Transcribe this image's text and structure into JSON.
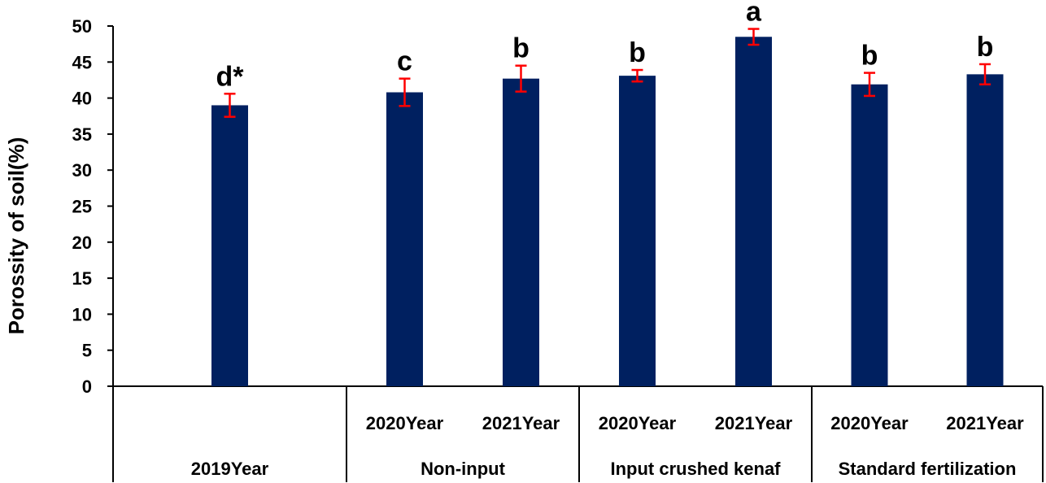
{
  "chart_data": {
    "type": "bar",
    "ylabel": "Porossity of soil(%)",
    "ylim": [
      0,
      50
    ],
    "yticks": [
      0,
      5,
      10,
      15,
      20,
      25,
      30,
      35,
      40,
      45,
      50
    ],
    "bar_color": "#002060",
    "error_color": "#ff0000",
    "groups": [
      {
        "name": "2019Year",
        "bars": [
          {
            "label": "",
            "value": 39.0,
            "error": 1.6,
            "sig": "d*"
          }
        ]
      },
      {
        "name": "Non-input",
        "bars": [
          {
            "label": "2020Year",
            "value": 40.8,
            "error": 1.9,
            "sig": "c"
          },
          {
            "label": "2021Year",
            "value": 42.7,
            "error": 1.8,
            "sig": "b"
          }
        ]
      },
      {
        "name": "Input crushed kenaf",
        "bars": [
          {
            "label": "2020Year",
            "value": 43.1,
            "error": 0.8,
            "sig": "b"
          },
          {
            "label": "2021Year",
            "value": 48.5,
            "error": 1.1,
            "sig": "a"
          }
        ]
      },
      {
        "name": "Standard fertilization",
        "bars": [
          {
            "label": "2020Year",
            "value": 41.9,
            "error": 1.6,
            "sig": "b"
          },
          {
            "label": "2021Year",
            "value": 43.3,
            "error": 1.4,
            "sig": "b"
          }
        ]
      }
    ]
  }
}
